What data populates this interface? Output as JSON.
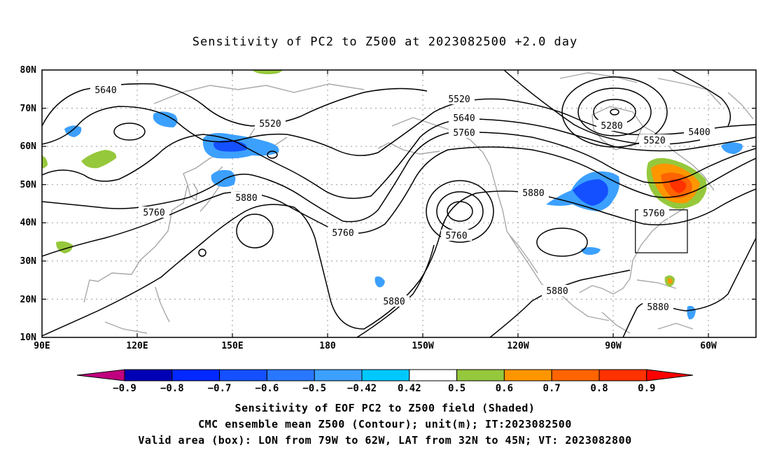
{
  "title": "Sensitivity of PC2 to Z500 at 2023082500 +2.0 day",
  "map": {
    "lat_labels": [
      "80N",
      "70N",
      "60N",
      "50N",
      "40N",
      "30N",
      "20N",
      "10N"
    ],
    "lon_labels": [
      "90E",
      "120E",
      "150E",
      "180",
      "150W",
      "120W",
      "90W",
      "60W"
    ],
    "contour_labels": [
      {
        "text": "5640"
      },
      {
        "text": "5520"
      },
      {
        "text": "5760"
      },
      {
        "text": "5880"
      },
      {
        "text": "5760"
      },
      {
        "text": "5520"
      },
      {
        "text": "5640"
      },
      {
        "text": "5760"
      },
      {
        "text": "5280"
      },
      {
        "text": "5400"
      },
      {
        "text": "5520"
      },
      {
        "text": "5880"
      },
      {
        "text": "5760"
      },
      {
        "text": "5760"
      },
      {
        "text": "5880"
      },
      {
        "text": "5880"
      },
      {
        "text": "5880"
      }
    ],
    "valid_area_box": {
      "lon": [
        -79,
        -62
      ],
      "lat": [
        32,
        45
      ]
    }
  },
  "colorbar": {
    "labels": [
      "−0.9",
      "−0.8",
      "−0.7",
      "−0.6",
      "−0.5",
      "−0.42",
      "0.42",
      "0.5",
      "0.6",
      "0.7",
      "0.8",
      "0.9"
    ],
    "colors": [
      "#c0007e",
      "#0000b4",
      "#0028ff",
      "#1450ff",
      "#2878ff",
      "#3ca0ff",
      "#00c8ff",
      "#ffffff",
      "#96c83c",
      "#ff9600",
      "#ff6400",
      "#ff3200",
      "#ff0000",
      "#ffa0c8"
    ]
  },
  "captions": {
    "line1": "Sensitivity of EOF PC2 to Z500 field (Shaded)",
    "line2": "CMC ensemble mean Z500 (Contour); unit(m); IT:2023082500",
    "line3": "Valid area (box): LON from 79W to 62W, LAT from 32N to 45N; VT: 2023082800"
  }
}
